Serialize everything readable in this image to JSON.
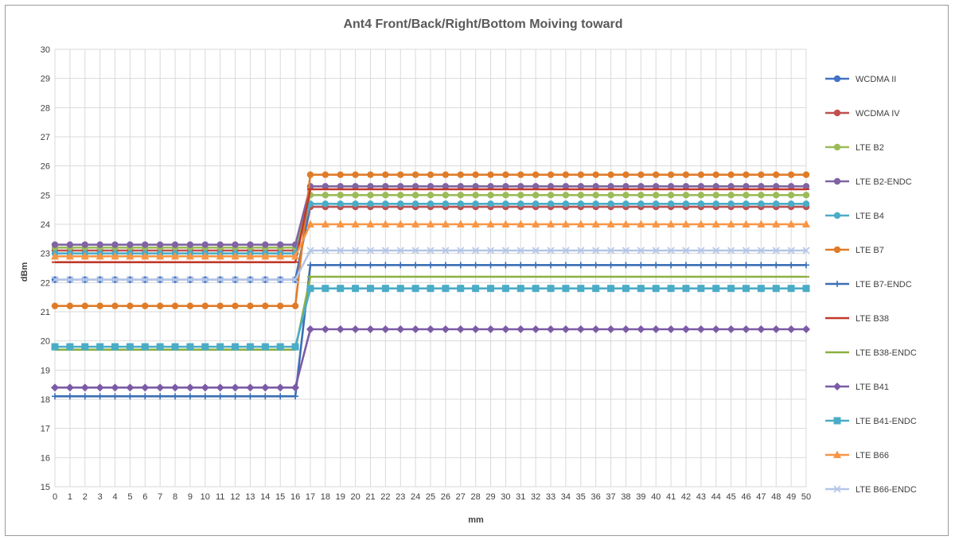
{
  "chart_data": {
    "type": "line",
    "title": "Ant4 Front/Back/Right/Bottom Moiving toward",
    "xlabel": "mm",
    "ylabel": "dBm",
    "ylim": [
      15,
      30
    ],
    "yticks": [
      15,
      16,
      17,
      18,
      19,
      20,
      21,
      22,
      23,
      24,
      25,
      26,
      27,
      28,
      29,
      30
    ],
    "x": [
      0,
      1,
      2,
      3,
      4,
      5,
      6,
      7,
      8,
      9,
      10,
      11,
      12,
      13,
      14,
      15,
      16,
      17,
      18,
      19,
      20,
      21,
      22,
      23,
      24,
      25,
      26,
      27,
      28,
      29,
      30,
      31,
      32,
      33,
      34,
      35,
      36,
      37,
      38,
      39,
      40,
      41,
      42,
      43,
      44,
      45,
      46,
      47,
      48,
      49,
      50
    ],
    "grid": true,
    "legend_position": "right",
    "series": [
      {
        "name": "WCDMA II",
        "color": "#4472C4",
        "marker": "circle",
        "before": 22.1,
        "after": 24.6
      },
      {
        "name": "WCDMA IV",
        "color": "#C0504D",
        "marker": "circle",
        "before": 23.1,
        "after": 24.6
      },
      {
        "name": "LTE B2",
        "color": "#9BBB59",
        "marker": "circle",
        "before": 23.2,
        "after": 25.0
      },
      {
        "name": "LTE B2-ENDC",
        "color": "#8064A2",
        "marker": "circle",
        "before": 23.3,
        "after": 25.3
      },
      {
        "name": "LTE B4",
        "color": "#4BACC6",
        "marker": "circle",
        "before": 23.0,
        "after": 24.7
      },
      {
        "name": "LTE B7",
        "color": "#E07B28",
        "marker": "circle",
        "before": 21.2,
        "after": 25.7
      },
      {
        "name": "LTE B7-ENDC",
        "color": "#3A6FB5",
        "marker": "plus",
        "before": 18.1,
        "after": 22.6
      },
      {
        "name": "LTE B38",
        "color": "#C0392B",
        "marker": "dash",
        "before": 22.7,
        "after": 25.2
      },
      {
        "name": "LTE B38-ENDC",
        "color": "#8DB040",
        "marker": "dash",
        "before": 19.7,
        "after": 22.2
      },
      {
        "name": "LTE B41",
        "color": "#7B5BA6",
        "marker": "diamond",
        "before": 18.4,
        "after": 20.4
      },
      {
        "name": "LTE B41-ENDC",
        "color": "#4BACC6",
        "marker": "square",
        "before": 19.8,
        "after": 21.8
      },
      {
        "name": "LTE B66",
        "color": "#F79646",
        "marker": "triangle",
        "before": 22.9,
        "after": 24.0
      },
      {
        "name": "LTE B66-ENDC",
        "color": "#B4C6E7",
        "marker": "x",
        "before": 22.1,
        "after": 23.1
      }
    ]
  }
}
